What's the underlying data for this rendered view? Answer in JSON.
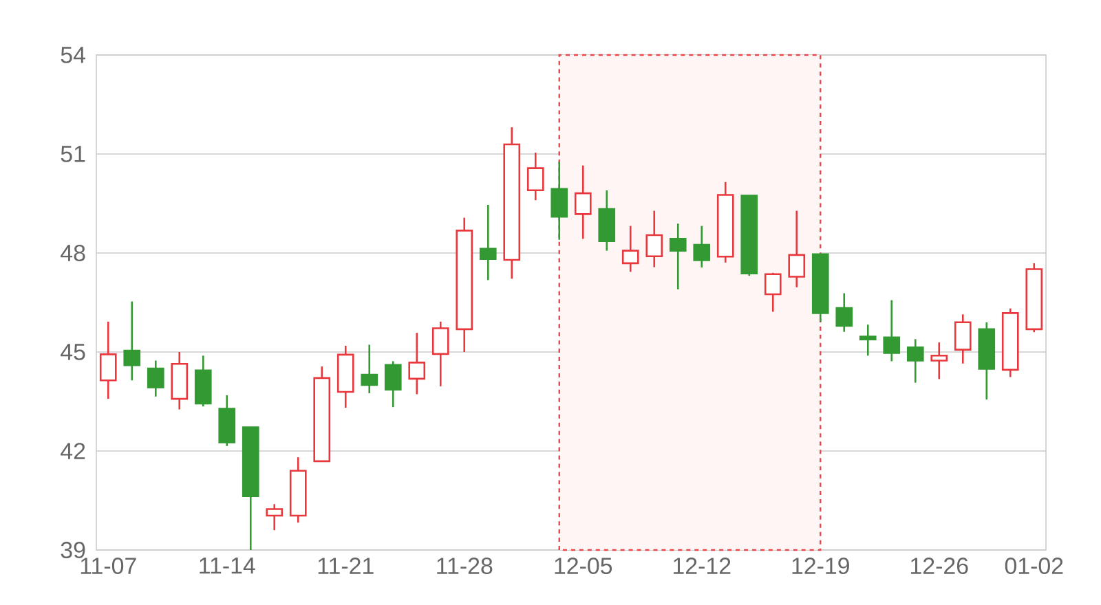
{
  "chart_data": {
    "type": "candlestick",
    "categories": [
      "11-07",
      null,
      null,
      null,
      null,
      "11-14",
      null,
      null,
      null,
      null,
      "11-21",
      null,
      null,
      null,
      null,
      "11-28",
      null,
      null,
      null,
      null,
      "12-05",
      null,
      null,
      null,
      null,
      "12-12",
      null,
      null,
      null,
      null,
      "12-19",
      null,
      null,
      null,
      null,
      "12-26",
      null,
      null,
      null,
      "01-02"
    ],
    "ohlc": [
      [
        44.14,
        45.92,
        43.58,
        44.93
      ],
      [
        45.04,
        46.53,
        44.14,
        44.6
      ],
      [
        44.5,
        44.74,
        43.65,
        43.93
      ],
      [
        43.58,
        45.0,
        43.26,
        44.64
      ],
      [
        44.44,
        44.89,
        43.35,
        43.44
      ],
      [
        43.28,
        43.69,
        42.15,
        42.26
      ],
      [
        42.72,
        42.72,
        39.0,
        40.63
      ],
      [
        40.04,
        40.39,
        39.6,
        40.24
      ],
      [
        40.04,
        41.81,
        39.83,
        41.4
      ],
      [
        41.69,
        44.56,
        41.69,
        44.21
      ],
      [
        43.79,
        45.19,
        43.31,
        44.92
      ],
      [
        44.31,
        45.22,
        43.75,
        44.0
      ],
      [
        44.61,
        44.72,
        43.33,
        43.86
      ],
      [
        44.19,
        45.58,
        43.72,
        44.68
      ],
      [
        44.94,
        45.92,
        43.96,
        45.72
      ],
      [
        45.69,
        49.07,
        45.0,
        48.68
      ],
      [
        48.13,
        49.46,
        47.18,
        47.82
      ],
      [
        47.79,
        51.81,
        47.22,
        51.29
      ],
      [
        49.9,
        51.04,
        49.6,
        50.57
      ],
      [
        49.94,
        50.76,
        48.4,
        49.1
      ],
      [
        49.18,
        50.65,
        48.43,
        49.81
      ],
      [
        49.33,
        49.9,
        48.07,
        48.36
      ],
      [
        47.69,
        48.82,
        47.43,
        48.07
      ],
      [
        47.9,
        49.28,
        47.57,
        48.54
      ],
      [
        48.43,
        48.89,
        46.9,
        48.07
      ],
      [
        48.25,
        48.82,
        47.56,
        47.78
      ],
      [
        47.89,
        50.15,
        47.71,
        49.76
      ],
      [
        49.74,
        49.74,
        47.31,
        47.38
      ],
      [
        46.75,
        47.4,
        46.22,
        47.36
      ],
      [
        47.28,
        49.28,
        46.96,
        47.94
      ],
      [
        47.96,
        47.96,
        45.92,
        46.18
      ],
      [
        46.33,
        46.78,
        45.61,
        45.79
      ],
      [
        45.47,
        45.83,
        44.89,
        45.38
      ],
      [
        45.44,
        46.57,
        44.72,
        44.97
      ],
      [
        45.14,
        45.39,
        44.07,
        44.74
      ],
      [
        44.74,
        45.29,
        44.18,
        44.89
      ],
      [
        45.07,
        46.14,
        44.65,
        45.9
      ],
      [
        45.69,
        45.9,
        43.56,
        44.49
      ],
      [
        44.46,
        46.32,
        44.24,
        46.18
      ],
      [
        45.69,
        47.69,
        45.6,
        47.51
      ]
    ],
    "colors": [
      "#e8383d",
      "#339933",
      "#339933",
      "#e8383d",
      "#339933",
      "#339933",
      "#339933",
      "#e8383d",
      "#e8383d",
      "#e8383d",
      "#e8383d",
      "#339933",
      "#339933",
      "#e8383d",
      "#e8383d",
      "#e8383d",
      "#339933",
      "#e8383d",
      "#e8383d",
      "#339933",
      "#e8383d",
      "#339933",
      "#e8383d",
      "#e8383d",
      "#339933",
      "#339933",
      "#e8383d",
      "#339933",
      "#e8383d",
      "#e8383d",
      "#339933",
      "#339933",
      "#339933",
      "#339933",
      "#339933",
      "#e8383d",
      "#e8383d",
      "#339933",
      "#e8383d",
      "#e8383d"
    ],
    "ylim": [
      39,
      54
    ],
    "yticks": [
      39,
      42,
      45,
      48,
      51,
      54
    ],
    "grid": "y"
  }
}
